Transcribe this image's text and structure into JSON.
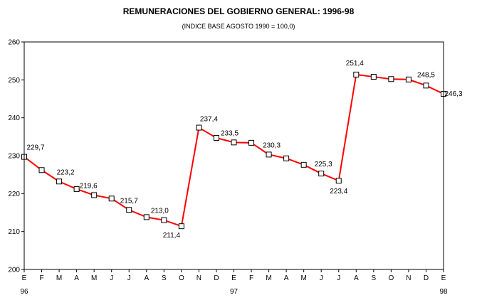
{
  "chart_data": {
    "type": "line",
    "title": "REMUNERACIONES DEL GOBIERNO GENERAL: 1996-98",
    "subtitle": "(INDICE BASE AGOSTO 1990 = 100,0)",
    "xlabel": "",
    "ylabel": "",
    "ylim": [
      200,
      260
    ],
    "yticks": [
      "200",
      "210",
      "220",
      "230",
      "240",
      "250",
      "260"
    ],
    "categories": [
      "E",
      "F",
      "M",
      "A",
      "M",
      "J",
      "J",
      "A",
      "S",
      "O",
      "N",
      "D",
      "E",
      "F",
      "M",
      "A",
      "M",
      "J",
      "J",
      "A",
      "S",
      "O",
      "N",
      "D",
      "E"
    ],
    "year_labels": [
      {
        "index": 0,
        "label": "96"
      },
      {
        "index": 12,
        "label": "97"
      },
      {
        "index": 24,
        "label": "98"
      }
    ],
    "grid": false,
    "line_color": "#ff0000",
    "marker_fill": "#ffffff",
    "marker_stroke": "#000000",
    "series": [
      {
        "values": [
          229.7,
          226.2,
          223.2,
          221.2,
          219.6,
          218.7,
          215.7,
          213.8,
          213.0,
          211.4,
          237.4,
          234.7,
          233.5,
          233.4,
          230.3,
          229.3,
          227.6,
          225.3,
          223.4,
          251.4,
          250.8,
          250.2,
          250.1,
          248.5,
          246.3
        ]
      }
    ],
    "data_labels": [
      {
        "index": 0,
        "text": "229,7"
      },
      {
        "index": 2,
        "text": "223,2"
      },
      {
        "index": 4,
        "text": "219,6"
      },
      {
        "index": 6,
        "text": "215,7"
      },
      {
        "index": 8,
        "text": "213,0"
      },
      {
        "index": 9,
        "text": "211,4"
      },
      {
        "index": 10,
        "text": "237,4"
      },
      {
        "index": 12,
        "text": "233,5"
      },
      {
        "index": 14,
        "text": "230,3"
      },
      {
        "index": 17,
        "text": "225,3"
      },
      {
        "index": 18,
        "text": "223,4"
      },
      {
        "index": 19,
        "text": "251,4"
      },
      {
        "index": 23,
        "text": "248,5"
      },
      {
        "index": 24,
        "text": "246,3"
      }
    ]
  }
}
